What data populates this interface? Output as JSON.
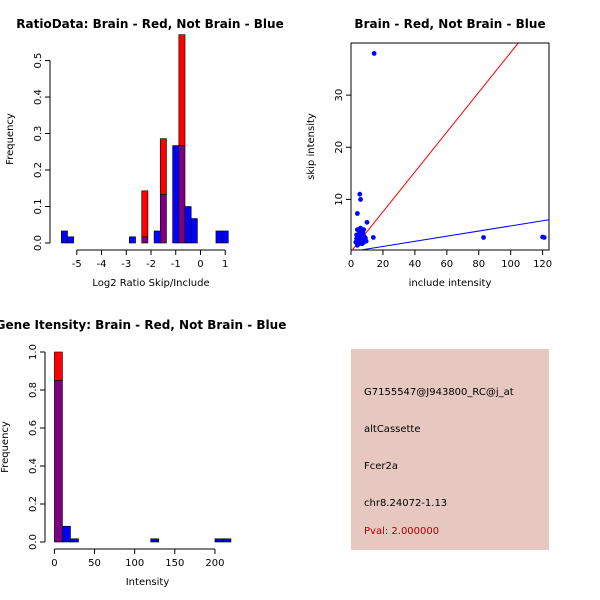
{
  "colors": {
    "red": "#ff0000",
    "blue": "#0000ff",
    "overlap": "#7f007f",
    "panel_bg": "#e6c8c0",
    "pval": "#b00000"
  },
  "chart_data": [
    {
      "type": "bar",
      "title": "RatioData: Brain - Red, Not Brain - Blue",
      "xlabel": "Log2 Ratio Skip/Include",
      "ylabel": "Frequency",
      "xlim": [
        -5.8,
        1.8
      ],
      "ylim": [
        0,
        0.57
      ],
      "bin_width": 0.25,
      "x_ticks": [
        -5,
        -4,
        -3,
        -2,
        -1,
        0,
        1
      ],
      "x_tick_labels": [
        "-5",
        "-4",
        "-3",
        "-2",
        "-1",
        "0",
        "1"
      ],
      "y_ticks": [
        0,
        0.1,
        0.2,
        0.3,
        0.4,
        0.5
      ],
      "y_tick_labels": [
        "0.0",
        "0.1",
        "0.2",
        "0.3",
        "0.4",
        "0.5"
      ],
      "series": [
        {
          "name": "Brain",
          "color": "red",
          "bins": [
            [
              -2.25,
              0.143
            ],
            [
              -1.5,
              0.286
            ],
            [
              -0.75,
              0.571
            ]
          ]
        },
        {
          "name": "Not Brain",
          "color": "blue",
          "bins": [
            [
              -5.5,
              0.033
            ],
            [
              -5.25,
              0.017
            ],
            [
              -2.75,
              0.017
            ],
            [
              -2.25,
              0.017
            ],
            [
              -1.75,
              0.033
            ],
            [
              -1.5,
              0.133
            ],
            [
              -1.0,
              0.267
            ],
            [
              -0.75,
              0.267
            ],
            [
              -0.5,
              0.1
            ],
            [
              -0.25,
              0.067
            ],
            [
              0.75,
              0.033
            ],
            [
              1.0,
              0.033
            ]
          ]
        }
      ]
    },
    {
      "type": "scatter",
      "title": "Brain - Red, Not Brain - Blue",
      "xlabel": "include intensity",
      "ylabel": "skip intensity",
      "xlim": [
        0,
        124
      ],
      "ylim": [
        0.3,
        40
      ],
      "x_ticks": [
        0,
        20,
        40,
        60,
        80,
        100,
        120
      ],
      "x_tick_labels": [
        "0",
        "20",
        "40",
        "60",
        "80",
        "100",
        "120"
      ],
      "y_ticks": [
        10,
        20,
        30
      ],
      "y_tick_labels": [
        "10",
        "20",
        "30"
      ],
      "points": [
        [
          14.5,
          38
        ],
        [
          5.5,
          11
        ],
        [
          6,
          10
        ],
        [
          4,
          7.3
        ],
        [
          10,
          5.6
        ],
        [
          14,
          2.7
        ],
        [
          83,
          2.7
        ],
        [
          120,
          2.8
        ],
        [
          121,
          2.7
        ],
        [
          5,
          4
        ],
        [
          6,
          4.5
        ],
        [
          7,
          4
        ],
        [
          5.5,
          3.5
        ],
        [
          4.5,
          3
        ],
        [
          6.5,
          3.2
        ],
        [
          7.5,
          3.6
        ],
        [
          8,
          3
        ],
        [
          6,
          2.5
        ],
        [
          5,
          2.2
        ],
        [
          4,
          2
        ],
        [
          7,
          2.2
        ],
        [
          8.5,
          2.4
        ],
        [
          9,
          2.6
        ],
        [
          3.5,
          2.5
        ],
        [
          6,
          1.8
        ],
        [
          5,
          1.5
        ],
        [
          4,
          1.2
        ],
        [
          7,
          1.5
        ],
        [
          8,
          1.8
        ],
        [
          5.5,
          3
        ],
        [
          6.5,
          2.8
        ],
        [
          4.5,
          2.6
        ],
        [
          3.5,
          3.2
        ],
        [
          7,
          3
        ],
        [
          9.5,
          2
        ],
        [
          4,
          4.2
        ],
        [
          6,
          3.8
        ],
        [
          5,
          2.8
        ],
        [
          8,
          4.2
        ],
        [
          3,
          1.8
        ]
      ],
      "lines": [
        {
          "color": "red",
          "x": [
            0,
            110
          ],
          "y": [
            0,
            42
          ]
        },
        {
          "color": "blue",
          "x": [
            0,
            124
          ],
          "y": [
            0,
            6.1
          ]
        }
      ]
    },
    {
      "type": "bar",
      "title": "Gene Itensity: Brain - Red, Not Brain - Blue",
      "xlabel": "Intensity",
      "ylabel": "Frequency",
      "xlim": [
        -3,
        235
      ],
      "ylim": [
        0,
        1
      ],
      "bin_width": 10,
      "x_ticks": [
        0,
        50,
        100,
        150,
        200
      ],
      "x_tick_labels": [
        "0",
        "50",
        "100",
        "150",
        "200"
      ],
      "y_ticks": [
        0,
        0.2,
        0.4,
        0.6,
        0.8,
        1.0
      ],
      "y_tick_labels": [
        "0.0",
        "0.2",
        "0.4",
        "0.6",
        "0.8",
        "1.0"
      ],
      "series": [
        {
          "name": "Brain",
          "color": "red",
          "bins": [
            [
              5,
              1.0
            ]
          ]
        },
        {
          "name": "Not Brain",
          "color": "blue",
          "bins": [
            [
              5,
              0.85
            ],
            [
              15,
              0.083
            ],
            [
              25,
              0.017
            ],
            [
              125,
              0.017
            ],
            [
              205,
              0.017
            ],
            [
              215,
              0.017
            ]
          ]
        }
      ]
    }
  ],
  "info": {
    "probe_id": "G7155547@J943800_RC@j_at",
    "event_type": "altCassette",
    "gene": "Fcer2a",
    "location": "chr8.24072-1.13",
    "pval": "Pval: 2.000000"
  }
}
